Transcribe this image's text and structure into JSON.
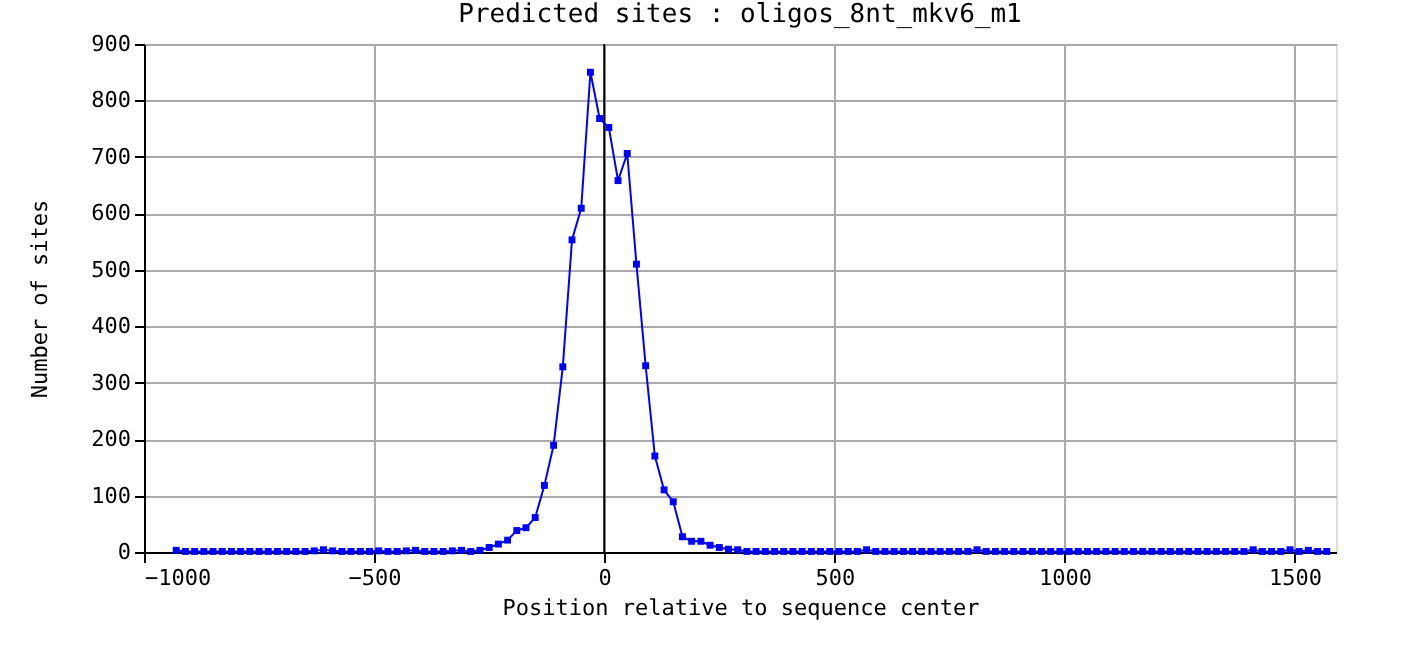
{
  "chart_data": {
    "type": "line",
    "title": "Predicted sites : oligos_8nt_mkv6_m1",
    "xlabel": "Position relative to sequence center",
    "ylabel": "Number of sites",
    "x": [
      -930,
      -910,
      -890,
      -870,
      -850,
      -830,
      -810,
      -790,
      -770,
      -750,
      -730,
      -710,
      -690,
      -670,
      -650,
      -630,
      -610,
      -590,
      -570,
      -550,
      -530,
      -510,
      -490,
      -470,
      -450,
      -430,
      -410,
      -390,
      -370,
      -350,
      -330,
      -310,
      -290,
      -270,
      -250,
      -230,
      -210,
      -190,
      -170,
      -150,
      -130,
      -110,
      -90,
      -70,
      -50,
      -30,
      -10,
      10,
      30,
      50,
      70,
      90,
      110,
      130,
      150,
      170,
      190,
      210,
      230,
      250,
      270,
      290,
      310,
      330,
      350,
      370,
      390,
      410,
      430,
      450,
      470,
      490,
      510,
      530,
      550,
      570,
      590,
      610,
      630,
      650,
      670,
      690,
      710,
      730,
      750,
      770,
      790,
      810,
      830,
      850,
      870,
      890,
      910,
      930,
      950,
      970,
      990,
      1010,
      1030,
      1050,
      1070,
      1090,
      1110,
      1130,
      1150,
      1170,
      1190,
      1210,
      1230,
      1250,
      1270,
      1290,
      1310,
      1330,
      1350,
      1370,
      1390,
      1410,
      1430,
      1450,
      1470,
      1490,
      1510,
      1530,
      1550,
      1570
    ],
    "series": [
      {
        "color": "#0000ff",
        "values": [
          3,
          1,
          1,
          1,
          1,
          1,
          1,
          1,
          1,
          1,
          1,
          1,
          1,
          1,
          1,
          2,
          4,
          2,
          1,
          1,
          1,
          1,
          2,
          1,
          1,
          2,
          3,
          1,
          1,
          1,
          2,
          3,
          1,
          3,
          8,
          14,
          21,
          38,
          43,
          61,
          118,
          189,
          328,
          553,
          609,
          850,
          768,
          752,
          658,
          706,
          510,
          330,
          170,
          110,
          89,
          27,
          19,
          19,
          12,
          8,
          5,
          4,
          1,
          1,
          1,
          1,
          1,
          1,
          1,
          1,
          1,
          1,
          1,
          1,
          1,
          4,
          1,
          1,
          1,
          1,
          1,
          1,
          1,
          1,
          1,
          1,
          1,
          4,
          1,
          1,
          1,
          1,
          1,
          1,
          1,
          1,
          1,
          1,
          1,
          1,
          1,
          1,
          1,
          1,
          1,
          1,
          1,
          1,
          1,
          1,
          1,
          1,
          1,
          1,
          1,
          1,
          1,
          4,
          1,
          1,
          1,
          4,
          1,
          3,
          1,
          1
        ]
      }
    ],
    "xlim": [
      -1000,
      1590
    ],
    "ylim": [
      0,
      900
    ],
    "xticks": [
      -1000,
      -500,
      0,
      500,
      1000,
      1500
    ],
    "yticks": [
      0,
      100,
      200,
      300,
      400,
      500,
      600,
      700,
      800,
      900
    ],
    "ref_lines": [
      {
        "axis": "x",
        "value": 0,
        "color": "#000000"
      }
    ],
    "grid": true,
    "marker": "square",
    "line_style": "solid"
  }
}
